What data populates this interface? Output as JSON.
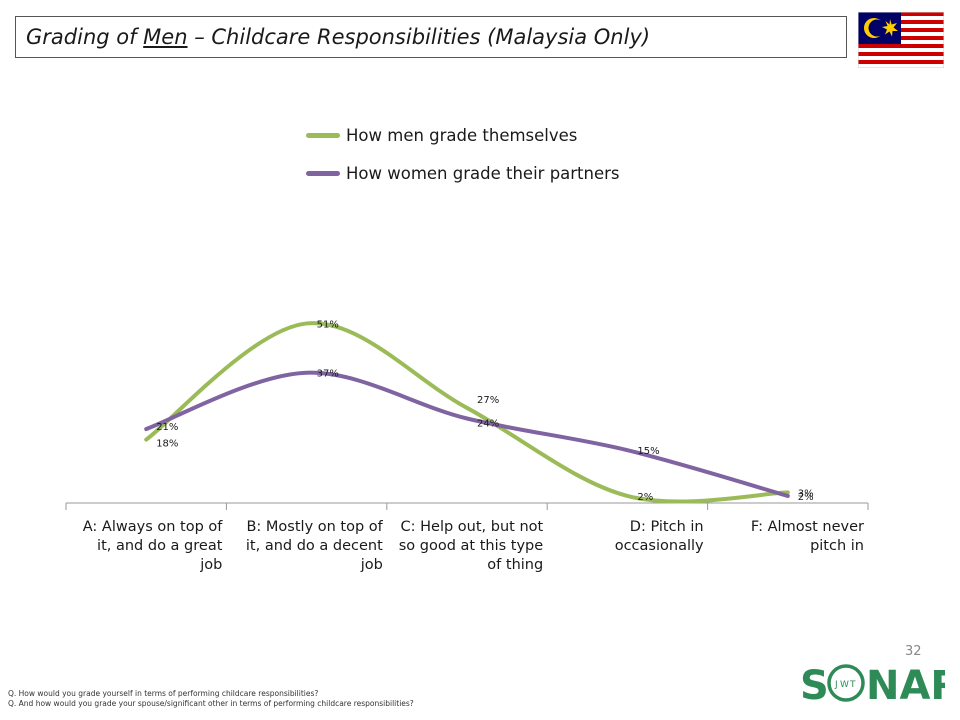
{
  "header": {
    "title_prefix": "Grading of ",
    "title_emphasis": "Men",
    "title_suffix": " – Childcare Responsibilities (Malaysia Only)"
  },
  "colors": {
    "men": "#9bbb59",
    "women": "#8064a2",
    "axis": "#999999"
  },
  "chart_data": {
    "type": "line",
    "categories": [
      "A: Always on top of it, and do a great job",
      "B: Mostly on top of it, and do a decent job",
      "C: Help out, but not so good at this type of thing",
      "D: Pitch in occasionally",
      "F: Almost never pitch in"
    ],
    "series": [
      {
        "name": "How men grade themselves",
        "values": [
          18,
          51,
          27,
          2,
          3
        ],
        "labels": [
          "18%",
          "51%",
          "27%",
          "2%",
          "3%"
        ]
      },
      {
        "name": "How women grade their partners",
        "values": [
          21,
          37,
          24,
          15,
          2
        ],
        "labels": [
          "21%",
          "37%",
          "24%",
          "15%",
          "2%"
        ]
      }
    ],
    "smoothed": true,
    "legend_position": "top",
    "ylim": [
      0,
      100
    ],
    "grid": false
  },
  "page_number": "32",
  "footnotes": [
    "Q. How would you grade yourself in terms of performing childcare responsibilities?",
    "Q. And how would you grade your spouse/significant other in terms of performing childcare responsibilities?"
  ],
  "logo": {
    "text_s": "S",
    "text_j": "J",
    "text_w": "W",
    "text_t": "T",
    "text_nar": "NAR"
  }
}
